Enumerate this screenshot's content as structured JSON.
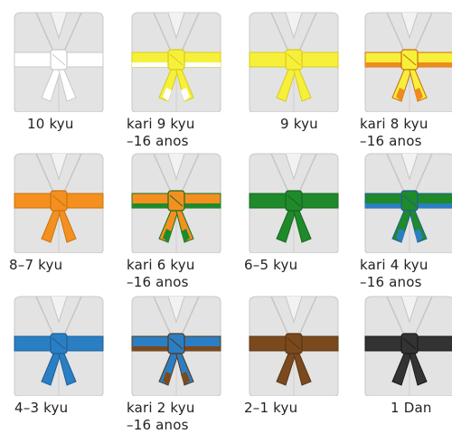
{
  "belts": [
    {
      "label": "10 kyu",
      "sub": "",
      "main": "#ffffff",
      "stripe": "",
      "edge": "#c9c9c9"
    },
    {
      "label": "kari 9 kyu",
      "sub": "–16 anos",
      "main": "#f7f03a",
      "stripe": "#ffffff",
      "edge": "#d6cc1c"
    },
    {
      "label": "9 kyu",
      "sub": "",
      "main": "#f7f03a",
      "stripe": "",
      "edge": "#d6cc1c"
    },
    {
      "label": "kari 8 kyu",
      "sub": "–16 anos",
      "main": "#f7f03a",
      "stripe": "#ef8a1c",
      "edge": "#c96e10"
    },
    {
      "label": "8–7 kyu",
      "sub": "",
      "main": "#f3901f",
      "stripe": "",
      "edge": "#c9720f"
    },
    {
      "label": "kari 6 kyu",
      "sub": "–16 anos",
      "main": "#f3901f",
      "stripe": "#1f8a2a",
      "edge": "#1a6d22"
    },
    {
      "label": "6–5 kyu",
      "sub": "",
      "main": "#1f8a2a",
      "stripe": "",
      "edge": "#166620"
    },
    {
      "label": "kari 4 kyu",
      "sub": "–16 anos",
      "main": "#1f8a2a",
      "stripe": "#2a7fc4",
      "edge": "#1d5e93"
    },
    {
      "label": "4–3 kyu",
      "sub": "",
      "main": "#2a7fc4",
      "stripe": "",
      "edge": "#1d5e93"
    },
    {
      "label": "kari 2 kyu",
      "sub": "–16 anos",
      "main": "#2a7fc4",
      "stripe": "#7a4a1e",
      "edge": "#5a3514"
    },
    {
      "label": "2–1 kyu",
      "sub": "",
      "main": "#7a4a1e",
      "stripe": "",
      "edge": "#5a3514"
    },
    {
      "label": "1 Dan",
      "sub": "",
      "main": "#333333",
      "stripe": "",
      "edge": "#1a1a1a"
    }
  ]
}
